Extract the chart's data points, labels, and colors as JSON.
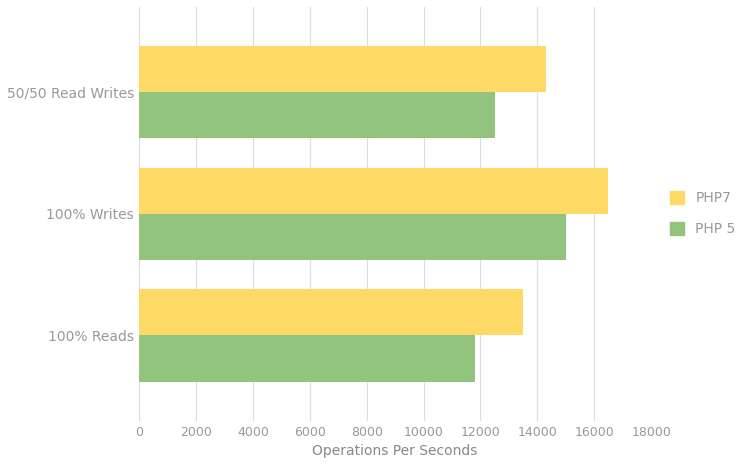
{
  "categories": [
    "100% Reads",
    "100% Writes",
    "50/50 Read Writes"
  ],
  "php7_values": [
    13500,
    16500,
    14300
  ],
  "php5_values": [
    11800,
    15000,
    12500
  ],
  "php7_color": "#FFD966",
  "php5_color": "#93C47D",
  "xlabel": "Operations Per Seconds",
  "xlim": [
    0,
    18000
  ],
  "xticks": [
    0,
    2000,
    4000,
    6000,
    8000,
    10000,
    12000,
    14000,
    16000,
    18000
  ],
  "legend_php7": "PHP7",
  "legend_php5": "PHP 5",
  "background_color": "#FFFFFF",
  "grid_color": "#DDDDDD",
  "bar_height": 0.38,
  "label_fontsize": 10,
  "tick_fontsize": 9,
  "ylabel_color": "#999999",
  "xlabel_color": "#888888",
  "tick_color": "#999999"
}
